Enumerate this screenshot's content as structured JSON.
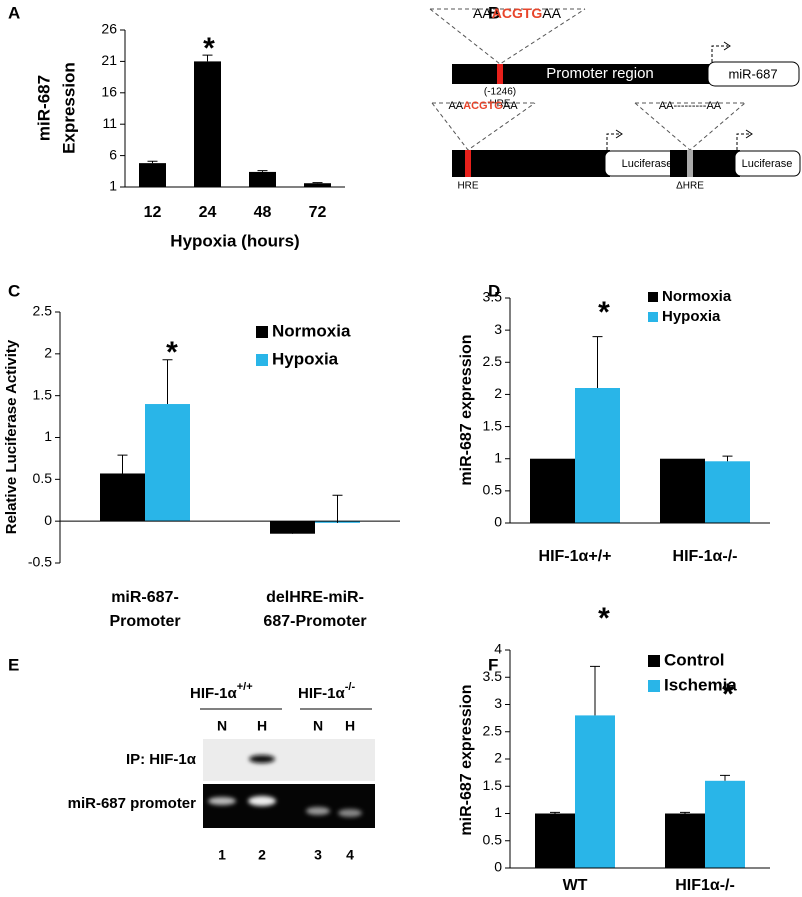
{
  "chart_data": [
    {
      "type": "bar",
      "panel_label": "A",
      "y_label": [
        "miR-687",
        "Expression"
      ],
      "x_label": "Hypoxia (hours)",
      "categories": [
        "12",
        "24",
        "48",
        "72"
      ],
      "values": [
        4.8,
        21,
        3.4,
        1.6
      ],
      "errors": [
        0.3,
        1,
        0.2,
        0.1
      ],
      "color": "#000000",
      "ylim": [
        1,
        26
      ],
      "yticks": [
        1,
        6,
        11,
        16,
        21,
        26
      ],
      "annotations": [
        "*"
      ]
    },
    {
      "type": "bar",
      "panel_label": "C",
      "y_label": "Relative Luciferase Activity",
      "categories": [
        [
          "miR-687-",
          "Promoter"
        ],
        [
          "delHRE-miR-",
          "687-Promoter"
        ]
      ],
      "series": [
        {
          "name": "Normoxia",
          "color": "#000000",
          "values": [
            0.57,
            -0.15
          ],
          "errors": [
            0.22,
            0.05
          ]
        },
        {
          "name": "Hypoxia",
          "color": "#29b5e8",
          "values": [
            1.4,
            -0.02
          ],
          "errors": [
            0.53,
            0.33
          ]
        }
      ],
      "ylim": [
        -0.5,
        2.5
      ],
      "yticks": [
        -0.5,
        0,
        0.5,
        1,
        1.5,
        2,
        2.5
      ],
      "annotations": [
        "*"
      ]
    },
    {
      "type": "bar",
      "panel_label": "D",
      "y_label": "miR-687 expression",
      "categories": [
        "HIF-1α+/+",
        "HIF-1α-/-"
      ],
      "series": [
        {
          "name": "Normoxia",
          "color": "#000000",
          "values": [
            1,
            1
          ]
        },
        {
          "name": "Hypoxia",
          "color": "#29b5e8",
          "values": [
            2.1,
            0.96
          ],
          "errors": [
            0.8,
            0.08
          ]
        }
      ],
      "ylim": [
        0,
        3.5
      ],
      "yticks": [
        0,
        0.5,
        1,
        1.5,
        2,
        2.5,
        3,
        3.5
      ],
      "annotations": [
        "*"
      ]
    },
    {
      "type": "bar",
      "panel_label": "F",
      "y_label": "miR-687 expression",
      "categories": [
        "WT",
        "HIF1α-/-"
      ],
      "series": [
        {
          "name": "Control",
          "color": "#000000",
          "values": [
            1,
            1
          ],
          "errors": [
            0.02,
            0.02
          ]
        },
        {
          "name": "Ischemia",
          "color": "#29b5e8",
          "values": [
            2.8,
            1.6
          ],
          "errors": [
            0.9,
            0.1
          ]
        }
      ],
      "ylim": [
        0,
        4
      ],
      "yticks": [
        0,
        0.5,
        1,
        1.5,
        2,
        2.5,
        3,
        3.5,
        4
      ],
      "annotations": [
        "*",
        "*"
      ]
    }
  ],
  "diagram": {
    "panel_label": "B",
    "top": {
      "sequence": [
        "AA",
        "ACGTG",
        "AA"
      ],
      "region": "Promoter region",
      "gene": "miR-687",
      "position": "(-1246)",
      "site": "HRE"
    },
    "left": {
      "sequence": [
        "AA",
        "ACGTG",
        "AA"
      ],
      "site": "HRE",
      "reporter": "Luciferase"
    },
    "right": {
      "sequence": "AA---------AA",
      "site": "ΔHRE",
      "reporter": "Luciferase"
    }
  },
  "gel": {
    "panel_label": "E",
    "groups": [
      {
        "name": "HIF-1α",
        "genotype": "+/+"
      },
      {
        "name": "HIF-1α",
        "genotype": "-/-"
      }
    ],
    "conditions": [
      "N",
      "H",
      "N",
      "H"
    ],
    "rows": [
      "IP: HIF-1α",
      "miR-687 promoter"
    ],
    "lanes": [
      "1",
      "2",
      "3",
      "4"
    ]
  }
}
